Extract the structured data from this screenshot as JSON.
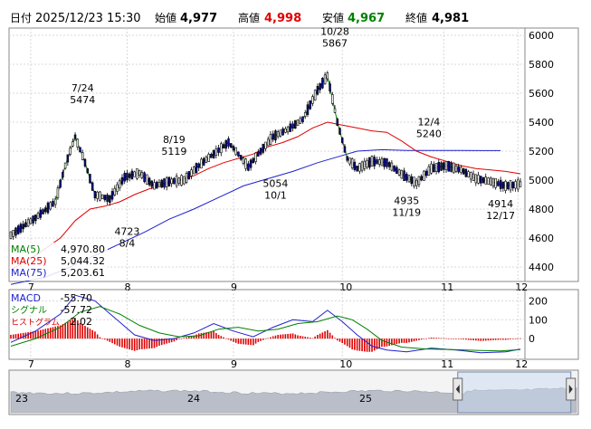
{
  "header": {
    "date_label": "日付",
    "datetime": "2025/12/23 15:30",
    "open_label": "始値",
    "open": "4,977",
    "high_label": "高値",
    "high": "4,998",
    "low_label": "安値",
    "low": "4,967",
    "close_label": "終値",
    "close": "4,981"
  },
  "colors": {
    "bull": "#ffffff",
    "bear": "#0a0a8c",
    "ma5": "#008000",
    "ma25": "#e00000",
    "ma75": "#1f1fd0",
    "macd": "#1f1fd0",
    "signal": "#008000",
    "histogram": "#e00000",
    "high_text": "#e00000",
    "low_text": "#008000",
    "navigator_fill": "#b9bec8"
  },
  "legend": {
    "ma5_label": "MA(5)",
    "ma5_value": "4,970.80",
    "ma25_label": "MA(25)",
    "ma25_value": "5,044.32",
    "ma75_label": "MA(75)",
    "ma75_value": "5,203.61"
  },
  "macd_legend": {
    "macd_label": "MACD",
    "macd_value": "-55.70",
    "signal_label": "シグナル",
    "signal_value": "-57.72",
    "hist_label": "ヒストグラム",
    "hist_value": "2.02"
  },
  "price_axis_ticks": [
    "6000",
    "5800",
    "5600",
    "5400",
    "5200",
    "5000",
    "4800",
    "4600",
    "4400"
  ],
  "macd_axis_ticks": [
    "200",
    "100",
    "0"
  ],
  "month_labels": [
    "7",
    "8",
    "9",
    "10",
    "11",
    "12"
  ],
  "navigator_labels": [
    "23",
    "24",
    "25"
  ],
  "annotations": [
    {
      "date": "7/24",
      "value": "5474"
    },
    {
      "date": "8/19",
      "value": "5119"
    },
    {
      "date": "8/4",
      "value": "4723"
    },
    {
      "date": "10/28",
      "value": "5867"
    },
    {
      "date": "10/1",
      "value": "5054"
    },
    {
      "date": "12/4",
      "value": "5240"
    },
    {
      "date": "11/19",
      "value": "4935"
    },
    {
      "date": "12/17",
      "value": "4914"
    }
  ],
  "chart_data": {
    "type": "candlestick",
    "y_range": [
      4300,
      6050
    ],
    "macd_range": [
      -100,
      250
    ],
    "ma_lines": {
      "ma5": [
        [
          0,
          4620
        ],
        [
          10,
          4740
        ],
        [
          18,
          4850
        ],
        [
          22,
          5100
        ],
        [
          26,
          5300
        ],
        [
          30,
          5120
        ],
        [
          34,
          4900
        ],
        [
          40,
          4870
        ],
        [
          46,
          5020
        ],
        [
          52,
          5050
        ],
        [
          58,
          4960
        ],
        [
          64,
          4990
        ],
        [
          70,
          5000
        ],
        [
          76,
          5100
        ],
        [
          82,
          5180
        ],
        [
          88,
          5260
        ],
        [
          92,
          5180
        ],
        [
          96,
          5090
        ],
        [
          100,
          5180
        ],
        [
          106,
          5300
        ],
        [
          112,
          5350
        ],
        [
          118,
          5420
        ],
        [
          124,
          5620
        ],
        [
          128,
          5720
        ],
        [
          132,
          5400
        ],
        [
          136,
          5150
        ],
        [
          140,
          5080
        ],
        [
          146,
          5130
        ],
        [
          152,
          5120
        ],
        [
          158,
          5040
        ],
        [
          164,
          4980
        ],
        [
          170,
          5080
        ],
        [
          176,
          5100
        ],
        [
          182,
          5070
        ],
        [
          188,
          5010
        ],
        [
          194,
          4990
        ],
        [
          200,
          4960
        ],
        [
          206,
          4971
        ]
      ],
      "ma25": [
        [
          0,
          4380
        ],
        [
          10,
          4480
        ],
        [
          20,
          4600
        ],
        [
          26,
          4720
        ],
        [
          32,
          4800
        ],
        [
          38,
          4820
        ],
        [
          44,
          4850
        ],
        [
          50,
          4900
        ],
        [
          56,
          4940
        ],
        [
          62,
          4970
        ],
        [
          68,
          5000
        ],
        [
          74,
          5030
        ],
        [
          80,
          5080
        ],
        [
          86,
          5120
        ],
        [
          92,
          5150
        ],
        [
          98,
          5180
        ],
        [
          104,
          5230
        ],
        [
          110,
          5260
        ],
        [
          116,
          5300
        ],
        [
          122,
          5360
        ],
        [
          128,
          5400
        ],
        [
          134,
          5380
        ],
        [
          140,
          5360
        ],
        [
          146,
          5340
        ],
        [
          152,
          5330
        ],
        [
          158,
          5270
        ],
        [
          164,
          5200
        ],
        [
          170,
          5160
        ],
        [
          176,
          5130
        ],
        [
          182,
          5100
        ],
        [
          188,
          5080
        ],
        [
          194,
          5070
        ],
        [
          200,
          5060
        ],
        [
          206,
          5044
        ]
      ],
      "ma75": [
        [
          0,
          4280
        ],
        [
          14,
          4330
        ],
        [
          24,
          4400
        ],
        [
          34,
          4480
        ],
        [
          44,
          4560
        ],
        [
          54,
          4640
        ],
        [
          64,
          4730
        ],
        [
          74,
          4800
        ],
        [
          84,
          4880
        ],
        [
          94,
          4960
        ],
        [
          104,
          5010
        ],
        [
          114,
          5060
        ],
        [
          124,
          5120
        ],
        [
          134,
          5170
        ],
        [
          140,
          5200
        ],
        [
          150,
          5210
        ],
        [
          160,
          5205
        ],
        [
          170,
          5205
        ],
        [
          180,
          5205
        ],
        [
          190,
          5204
        ],
        [
          198,
          5204
        ]
      ]
    },
    "macd": [
      [
        0,
        -20
      ],
      [
        10,
        40
      ],
      [
        20,
        130
      ],
      [
        26,
        230
      ],
      [
        34,
        200
      ],
      [
        42,
        110
      ],
      [
        50,
        20
      ],
      [
        58,
        -10
      ],
      [
        66,
        0
      ],
      [
        74,
        30
      ],
      [
        82,
        80
      ],
      [
        90,
        40
      ],
      [
        98,
        10
      ],
      [
        106,
        60
      ],
      [
        114,
        100
      ],
      [
        122,
        90
      ],
      [
        128,
        150
      ],
      [
        134,
        90
      ],
      [
        140,
        20
      ],
      [
        146,
        -40
      ],
      [
        152,
        -60
      ],
      [
        160,
        -70
      ],
      [
        170,
        -50
      ],
      [
        180,
        -60
      ],
      [
        190,
        -75
      ],
      [
        200,
        -70
      ],
      [
        206,
        -56
      ]
    ],
    "signal": [
      [
        0,
        -40
      ],
      [
        10,
        0
      ],
      [
        20,
        60
      ],
      [
        28,
        140
      ],
      [
        36,
        170
      ],
      [
        44,
        130
      ],
      [
        52,
        70
      ],
      [
        60,
        30
      ],
      [
        68,
        10
      ],
      [
        76,
        15
      ],
      [
        84,
        50
      ],
      [
        92,
        60
      ],
      [
        100,
        40
      ],
      [
        108,
        50
      ],
      [
        116,
        80
      ],
      [
        124,
        90
      ],
      [
        132,
        120
      ],
      [
        138,
        100
      ],
      [
        144,
        50
      ],
      [
        150,
        -10
      ],
      [
        158,
        -45
      ],
      [
        168,
        -55
      ],
      [
        178,
        -58
      ],
      [
        188,
        -62
      ],
      [
        198,
        -65
      ],
      [
        206,
        -58
      ]
    ]
  },
  "navigator": {
    "window_start": 0.79,
    "window_end": 0.99
  }
}
